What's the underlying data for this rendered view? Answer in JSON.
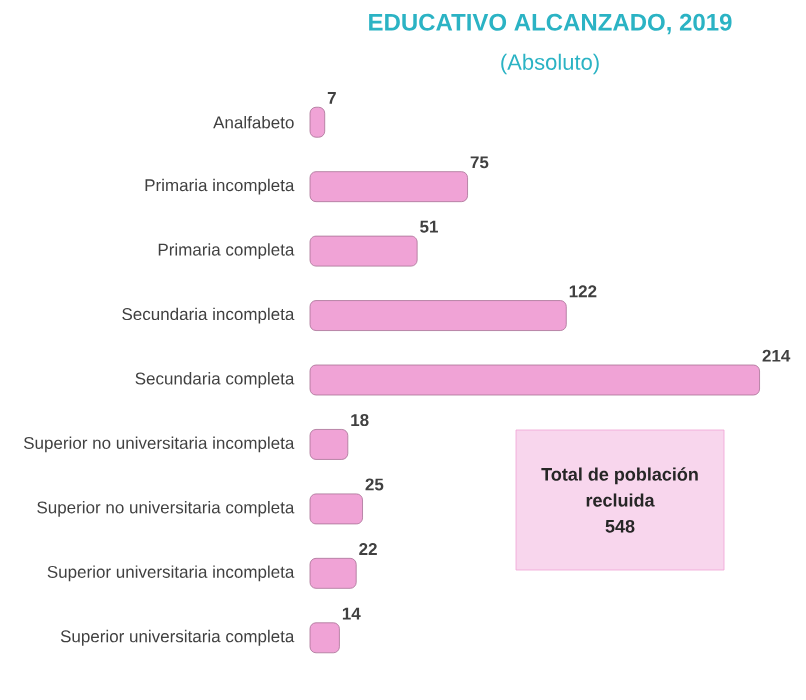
{
  "chart_data": {
    "type": "bar",
    "orientation": "horizontal",
    "title": "EDUCATIVO ALCANZADO, 2019",
    "subtitle": "(Absoluto)",
    "categories": [
      "Analfabeto",
      "Primaria incompleta",
      "Primaria completa",
      "Secundaria incompleta",
      "Secundaria completa",
      "Superior no universitaria incompleta",
      "Superior no universitaria completa",
      "Superior universitaria incompleta",
      "Superior universitaria completa"
    ],
    "values": [
      7,
      75,
      51,
      122,
      214,
      18,
      25,
      22,
      14
    ],
    "color": "#f0a3d6",
    "data_labels": true,
    "annotations": [
      "Total de población",
      "recluida",
      "548"
    ]
  }
}
